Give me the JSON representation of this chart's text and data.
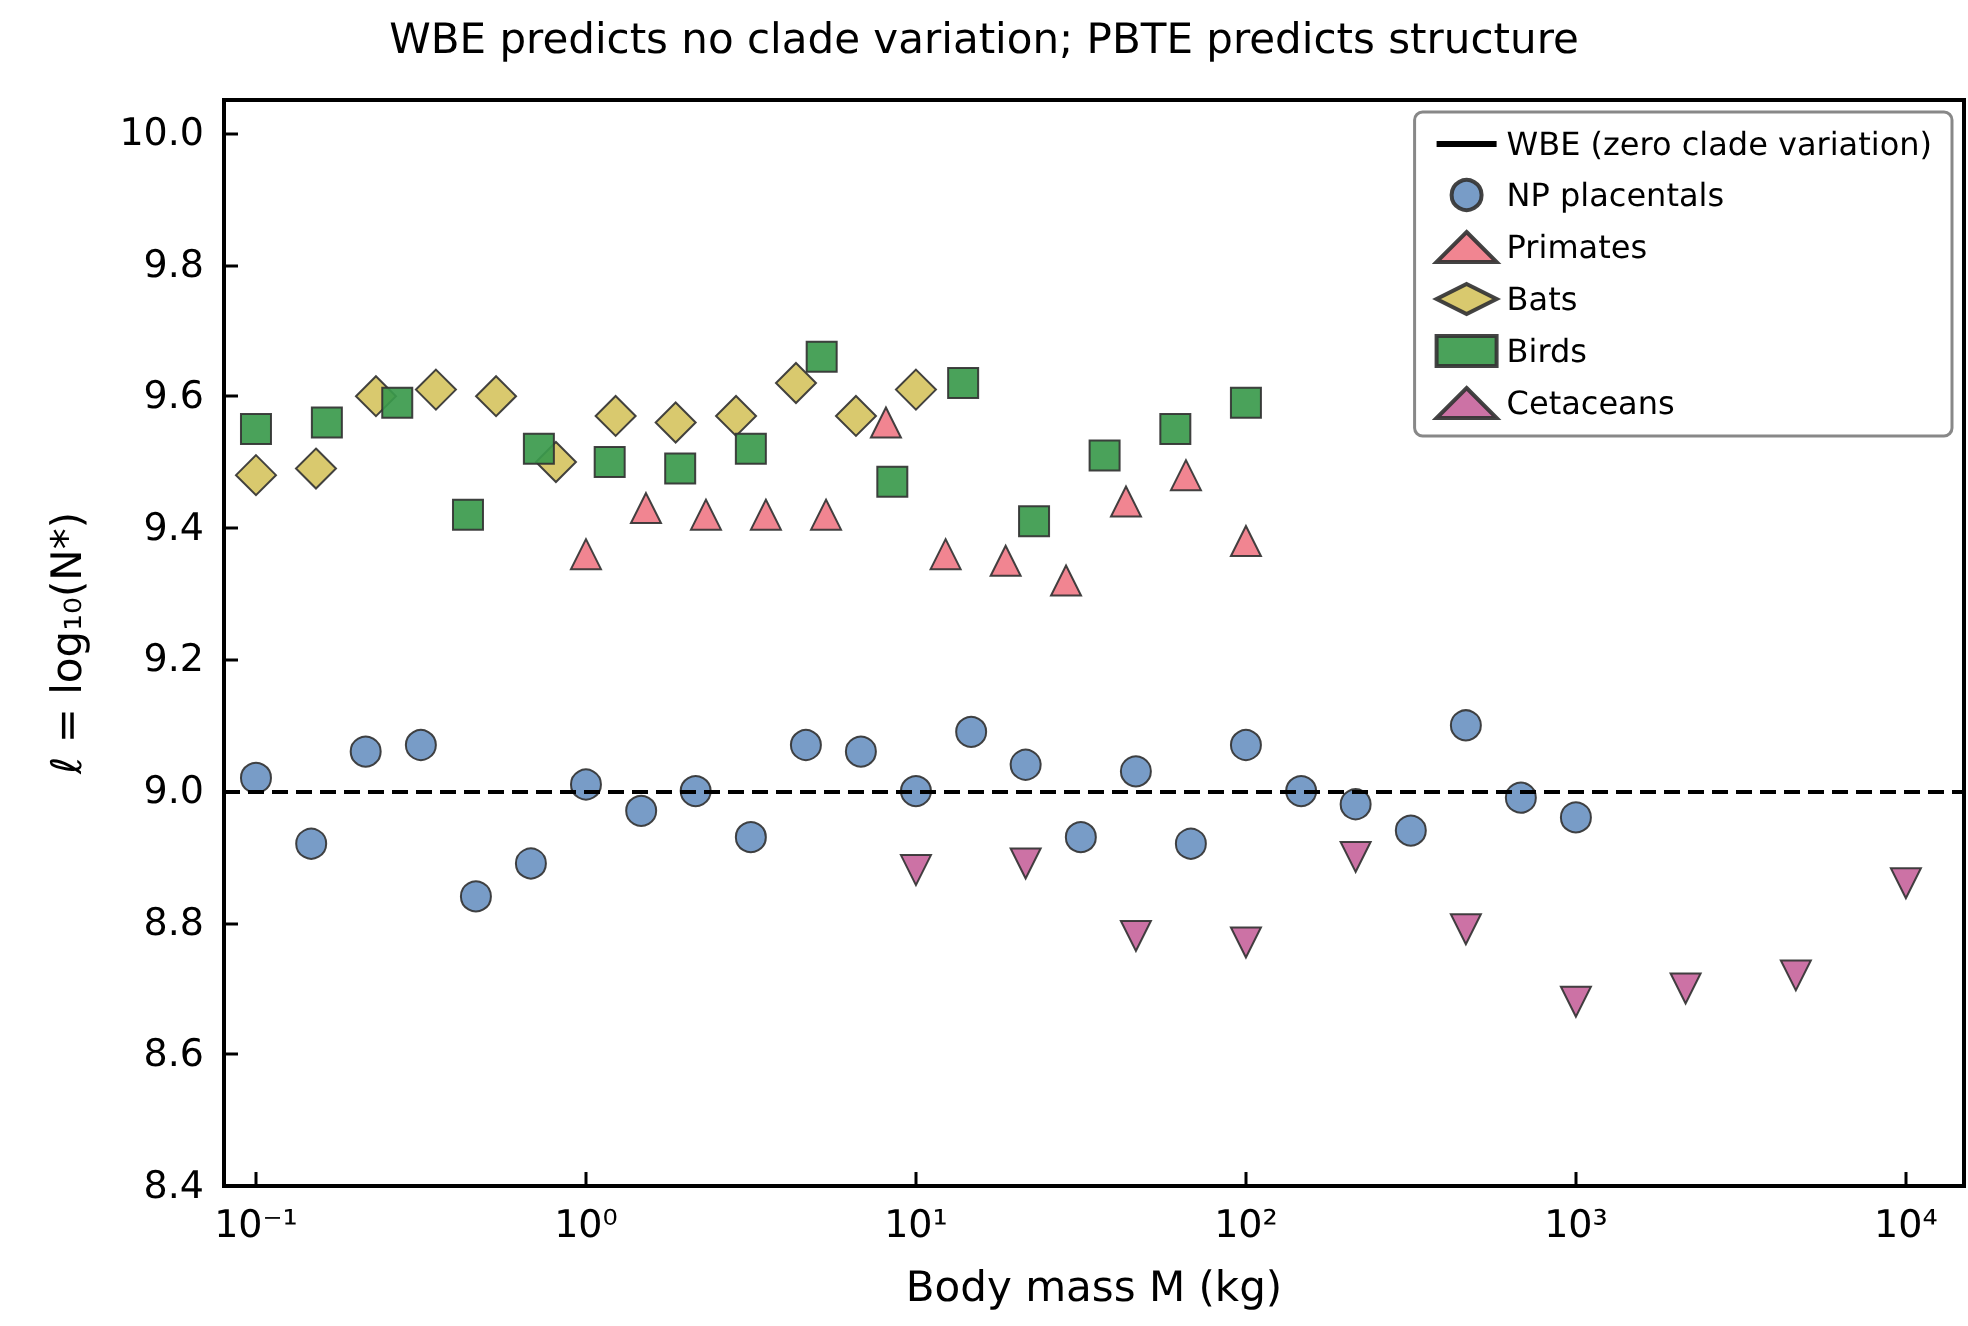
{
  "chart_data": {
    "type": "scatter",
    "title": "WBE predicts no clade variation; PBTE predicts structure",
    "xlabel": "Body mass M (kg)",
    "ylabel": "ℓ = log₁₀(N*)",
    "log": "x",
    "grid": false,
    "legend": "top right",
    "xlim": [
      0.08,
      15000
    ],
    "xticks": [
      {
        "value": 0.1,
        "label": "10⁻¹"
      },
      {
        "value": 1,
        "label": "10⁰"
      },
      {
        "value": 10,
        "label": "10¹"
      },
      {
        "value": 100,
        "label": "10²"
      },
      {
        "value": 1000,
        "label": "10³"
      },
      {
        "value": 10000,
        "label": "10⁴"
      }
    ],
    "ylim": [
      8.4,
      10.05
    ],
    "yticks": [
      {
        "value": 8.4,
        "label": "8.4"
      },
      {
        "value": 8.6,
        "label": "8.6"
      },
      {
        "value": 8.8,
        "label": "8.8"
      },
      {
        "value": 9.0,
        "label": "9.0"
      },
      {
        "value": 9.2,
        "label": "9.2"
      },
      {
        "value": 9.4,
        "label": "9.4"
      },
      {
        "value": 9.6,
        "label": "9.6"
      },
      {
        "value": 9.8,
        "label": "9.8"
      },
      {
        "value": 10.0,
        "label": "10.0"
      }
    ],
    "ref_lines": [
      {
        "axis": "y",
        "value": 9.0,
        "label": "WBE (zero clade variation)",
        "color": "#000000",
        "line_style": "dashed"
      }
    ],
    "series": [
      {
        "name": "NP placentals",
        "color": "#6d94c2",
        "marker": "circle",
        "x": [
          0.1,
          0.147,
          0.215,
          0.316,
          0.464,
          0.681,
          1,
          1.47,
          2.15,
          3.16,
          4.64,
          6.81,
          10,
          14.7,
          21.5,
          31.6,
          46.4,
          68.1,
          100,
          147,
          215,
          316,
          464,
          681,
          1000
        ],
        "values": [
          9.02,
          8.92,
          9.06,
          9.07,
          8.84,
          8.89,
          9.01,
          8.97,
          9.0,
          8.93,
          9.07,
          9.06,
          9.0,
          9.09,
          9.04,
          8.93,
          9.03,
          8.92,
          9.07,
          9.0,
          8.98,
          8.94,
          9.1,
          8.99,
          8.96
        ]
      },
      {
        "name": "Primates",
        "color": "#f07b88",
        "marker": "triangle",
        "x": [
          1,
          1.52,
          2.31,
          3.51,
          5.34,
          8.11,
          12.3,
          18.7,
          28.5,
          43.3,
          65.8,
          100
        ],
        "values": [
          9.36,
          9.43,
          9.42,
          9.42,
          9.42,
          9.56,
          9.36,
          9.35,
          9.32,
          9.44,
          9.48,
          9.38
        ]
      },
      {
        "name": "Bats",
        "color": "#d6c462",
        "marker": "diamond",
        "x": [
          0.1,
          0.152,
          0.231,
          0.351,
          0.534,
          0.811,
          1.23,
          1.87,
          2.85,
          4.33,
          6.58,
          10
        ],
        "values": [
          9.48,
          9.49,
          9.6,
          9.61,
          9.6,
          9.5,
          9.57,
          9.56,
          9.57,
          9.62,
          9.57,
          9.61
        ]
      },
      {
        "name": "Birds",
        "color": "#3b9a4c",
        "marker": "square",
        "x": [
          0.1,
          0.164,
          0.268,
          0.439,
          0.72,
          1.18,
          1.93,
          3.16,
          5.18,
          8.48,
          13.9,
          22.8,
          37.3,
          61.1,
          100
        ],
        "values": [
          9.55,
          9.56,
          9.59,
          9.42,
          9.52,
          9.5,
          9.49,
          9.52,
          9.66,
          9.47,
          9.62,
          9.41,
          9.51,
          9.55,
          9.59
        ]
      },
      {
        "name": "Cetaceans",
        "color": "#c8669d",
        "marker": "triangle_down",
        "x": [
          10,
          21.5,
          46.4,
          100,
          215,
          464,
          1000,
          2150,
          4640,
          10000
        ],
        "values": [
          8.88,
          8.89,
          8.78,
          8.77,
          8.9,
          8.79,
          8.68,
          8.7,
          8.72,
          8.86
        ]
      }
    ]
  }
}
